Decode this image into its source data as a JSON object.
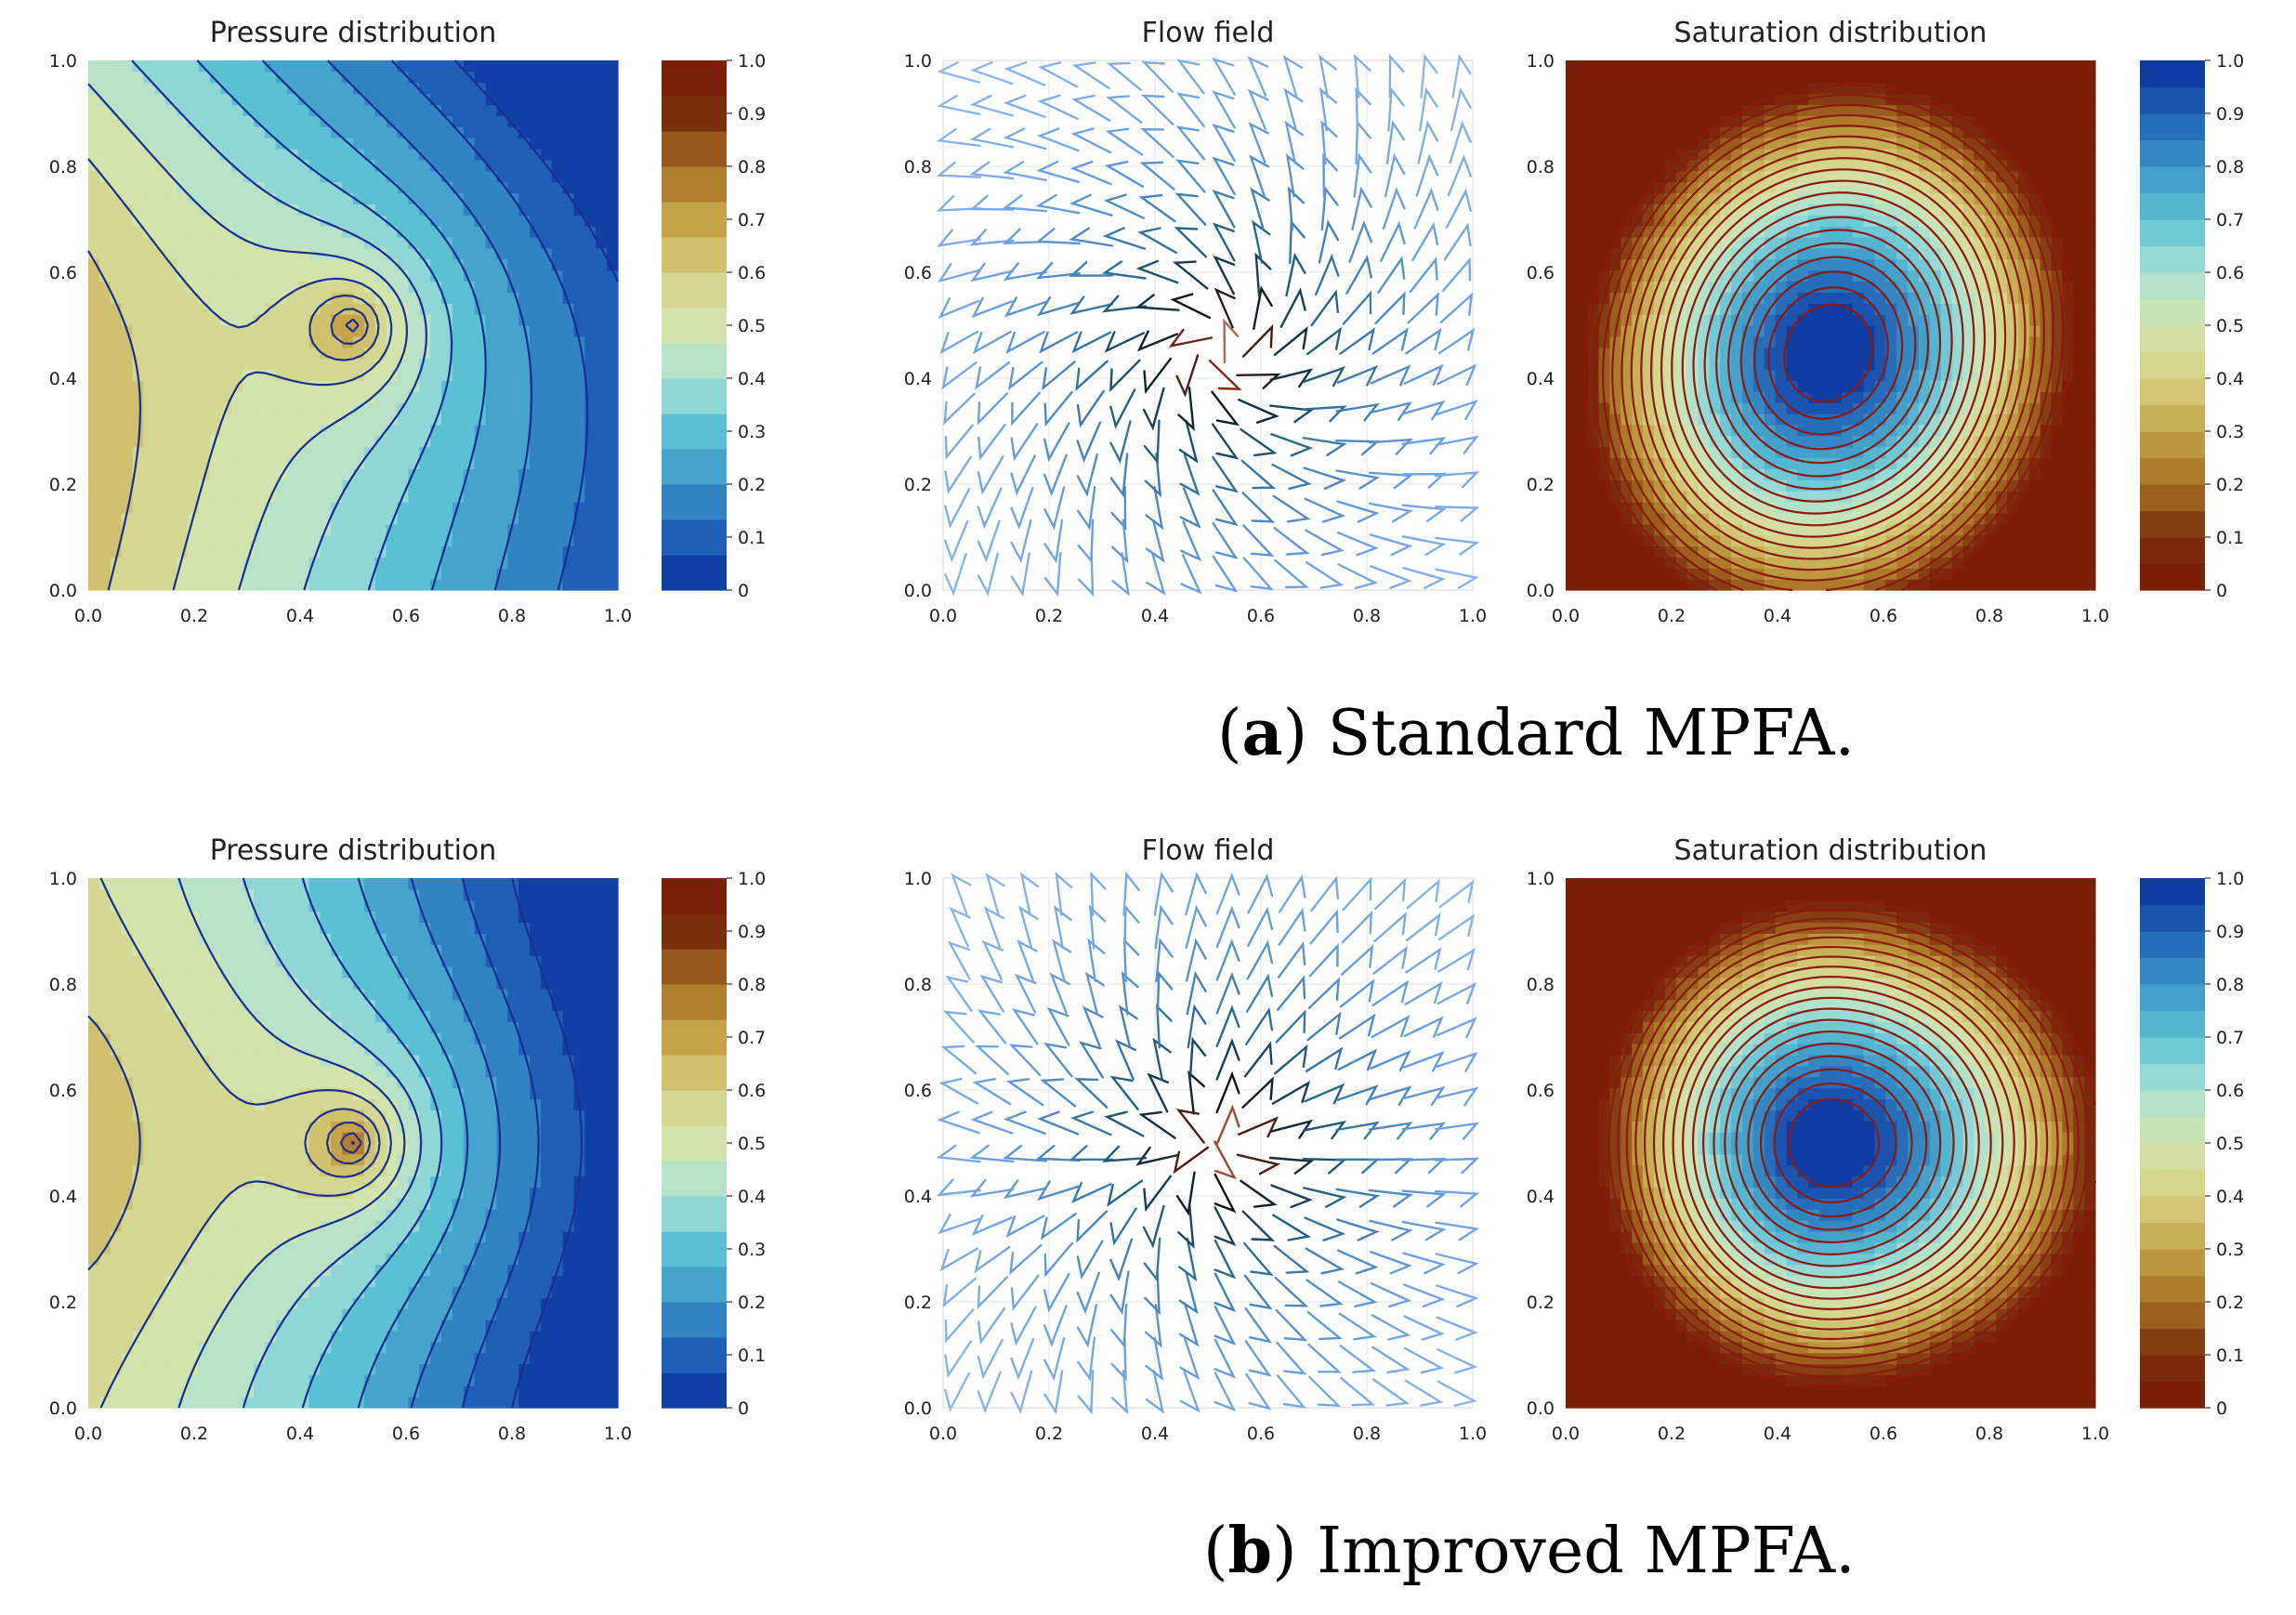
{
  "figure": {
    "captions": [
      {
        "letter": "a",
        "text": "Standard MPFA."
      },
      {
        "letter": "b",
        "text": "Improved MPFA."
      }
    ]
  },
  "chart_data": [
    {
      "type": "heatmap",
      "panel": "a-pressure",
      "field": "pressure",
      "variant": "standard",
      "title": "Pressure distribution",
      "xlim": [
        0,
        1
      ],
      "ylim": [
        0,
        1
      ],
      "xticks": [
        "0.0",
        "0.2",
        "0.4",
        "0.6",
        "0.8",
        "1.0"
      ],
      "yticks": [
        "0.0",
        "0.2",
        "0.4",
        "0.6",
        "0.8",
        "1.0"
      ],
      "colorbar": {
        "ticks": [
          "0",
          "0.1",
          "0.2",
          "0.3",
          "0.4",
          "0.5",
          "0.6",
          "0.7",
          "0.8",
          "0.9",
          "1.0"
        ],
        "levels": 15,
        "colormap": "blue-to-brown"
      },
      "source": [
        0.5,
        0.5
      ],
      "line_color": "#1a2f8f"
    },
    {
      "type": "quiver",
      "panel": "a-flow",
      "field": "flow",
      "variant": "standard",
      "title": "Flow field",
      "xlim": [
        0,
        1
      ],
      "ylim": [
        0,
        1
      ],
      "xticks": [
        "0.0",
        "0.2",
        "0.4",
        "0.6",
        "0.8",
        "1.0"
      ],
      "yticks": [
        "0.0",
        "0.2",
        "0.4",
        "0.6",
        "0.8",
        "1.0"
      ],
      "source": [
        0.52,
        0.45
      ],
      "grid": true
    },
    {
      "type": "heatmap",
      "panel": "a-saturation",
      "field": "saturation",
      "variant": "standard",
      "title": "Saturation distribution",
      "xlim": [
        0,
        1
      ],
      "ylim": [
        0,
        1
      ],
      "xticks": [
        "0.0",
        "0.2",
        "0.4",
        "0.6",
        "0.8",
        "1.0"
      ],
      "yticks": [
        "0.0",
        "0.2",
        "0.4",
        "0.6",
        "0.8",
        "1.0"
      ],
      "colorbar": {
        "ticks": [
          "0",
          "0.1",
          "0.2",
          "0.3",
          "0.4",
          "0.5",
          "0.6",
          "0.7",
          "0.8",
          "0.9",
          "1.0"
        ],
        "levels": 20,
        "colormap": "brown-to-blue"
      },
      "source": [
        0.5,
        0.5
      ],
      "line_color": "#8b1a10"
    },
    {
      "type": "heatmap",
      "panel": "b-pressure",
      "field": "pressure",
      "variant": "improved",
      "title": "Pressure distribution",
      "xlim": [
        0,
        1
      ],
      "ylim": [
        0,
        1
      ],
      "xticks": [
        "0.0",
        "0.2",
        "0.4",
        "0.6",
        "0.8",
        "1.0"
      ],
      "yticks": [
        "0.0",
        "0.2",
        "0.4",
        "0.6",
        "0.8",
        "1.0"
      ],
      "colorbar": {
        "ticks": [
          "0",
          "0.1",
          "0.2",
          "0.3",
          "0.4",
          "0.5",
          "0.6",
          "0.7",
          "0.8",
          "0.9",
          "1.0"
        ],
        "levels": 15,
        "colormap": "blue-to-brown"
      },
      "source": [
        0.5,
        0.5
      ],
      "line_color": "#1a2f8f"
    },
    {
      "type": "quiver",
      "panel": "b-flow",
      "field": "flow",
      "variant": "improved",
      "title": "Flow field",
      "xlim": [
        0,
        1
      ],
      "ylim": [
        0,
        1
      ],
      "xticks": [
        "0.0",
        "0.2",
        "0.4",
        "0.6",
        "0.8",
        "1.0"
      ],
      "yticks": [
        "0.0",
        "0.2",
        "0.4",
        "0.6",
        "0.8",
        "1.0"
      ],
      "source": [
        0.53,
        0.5
      ],
      "grid": true
    },
    {
      "type": "heatmap",
      "panel": "b-saturation",
      "field": "saturation",
      "variant": "improved",
      "title": "Saturation distribution",
      "xlim": [
        0,
        1
      ],
      "ylim": [
        0,
        1
      ],
      "xticks": [
        "0.0",
        "0.2",
        "0.4",
        "0.6",
        "0.8",
        "1.0"
      ],
      "yticks": [
        "0.0",
        "0.2",
        "0.4",
        "0.6",
        "0.8",
        "1.0"
      ],
      "colorbar": {
        "ticks": [
          "0",
          "0.1",
          "0.2",
          "0.3",
          "0.4",
          "0.5",
          "0.6",
          "0.7",
          "0.8",
          "0.9",
          "1.0"
        ],
        "levels": 20,
        "colormap": "brown-to-blue"
      },
      "source": [
        0.5,
        0.5
      ],
      "line_color": "#8b1a10"
    }
  ]
}
